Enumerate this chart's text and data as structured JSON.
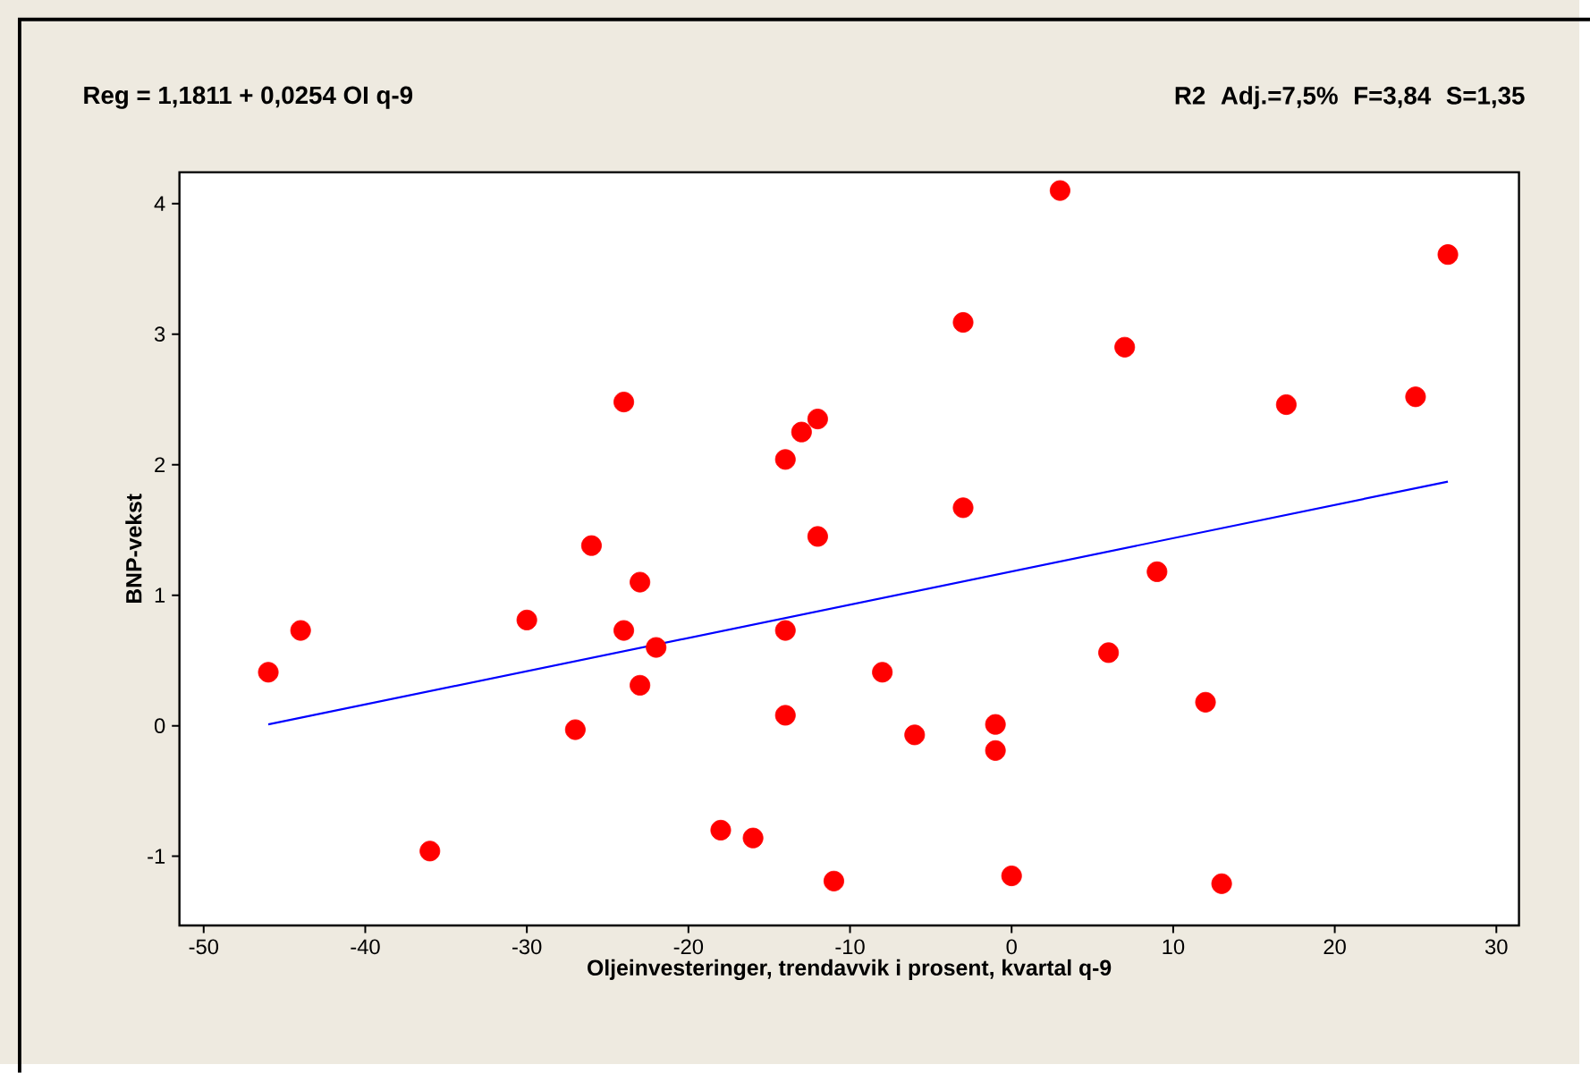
{
  "chart_data": {
    "type": "scatter",
    "title": "Reg = 1,1811 + 0,0254 OI q-9",
    "annotations": [
      "R2 Adj.=7,5% F=3,84 S=1,35"
    ],
    "xlabel": "Oljeinvesteringer, trendavvik i prosent, kvartal q-9",
    "ylabel": "BNP-vekst",
    "xlim": [
      -51.5,
      31.4
    ],
    "ylim": [
      -1.53,
      4.24
    ],
    "xticks": [
      -50,
      -40,
      -30,
      -20,
      -10,
      0,
      10,
      20,
      30
    ],
    "yticks": [
      -1,
      0,
      1,
      2,
      3,
      4
    ],
    "marker": "circle",
    "series": [
      {
        "color": "#ff0000",
        "x": [
          -46,
          -44,
          -36,
          -30,
          -27,
          -26,
          -24,
          -24,
          -23,
          -23,
          -22,
          -18,
          -16,
          -14,
          -14,
          -14,
          -13,
          -12,
          -12,
          -11,
          -8,
          -6,
          -3,
          -3,
          -1,
          -1,
          0,
          3,
          6,
          7,
          9,
          12,
          13,
          17,
          25,
          27
        ],
        "values": [
          0.41,
          0.73,
          -0.96,
          0.81,
          -0.03,
          1.38,
          2.48,
          0.73,
          1.1,
          0.31,
          0.6,
          -0.8,
          -0.86,
          2.04,
          0.73,
          0.08,
          2.25,
          2.35,
          1.45,
          -1.19,
          0.41,
          -0.07,
          3.09,
          1.67,
          0.01,
          -0.19,
          -1.15,
          4.1,
          0.56,
          2.9,
          1.18,
          0.18,
          -1.21,
          2.46,
          2.52,
          3.61
        ]
      },
      {
        "type": "line",
        "color": "#0000ff",
        "marker": "none",
        "x": [
          -46,
          27
        ],
        "values": [
          0.01,
          1.87
        ]
      }
    ]
  }
}
